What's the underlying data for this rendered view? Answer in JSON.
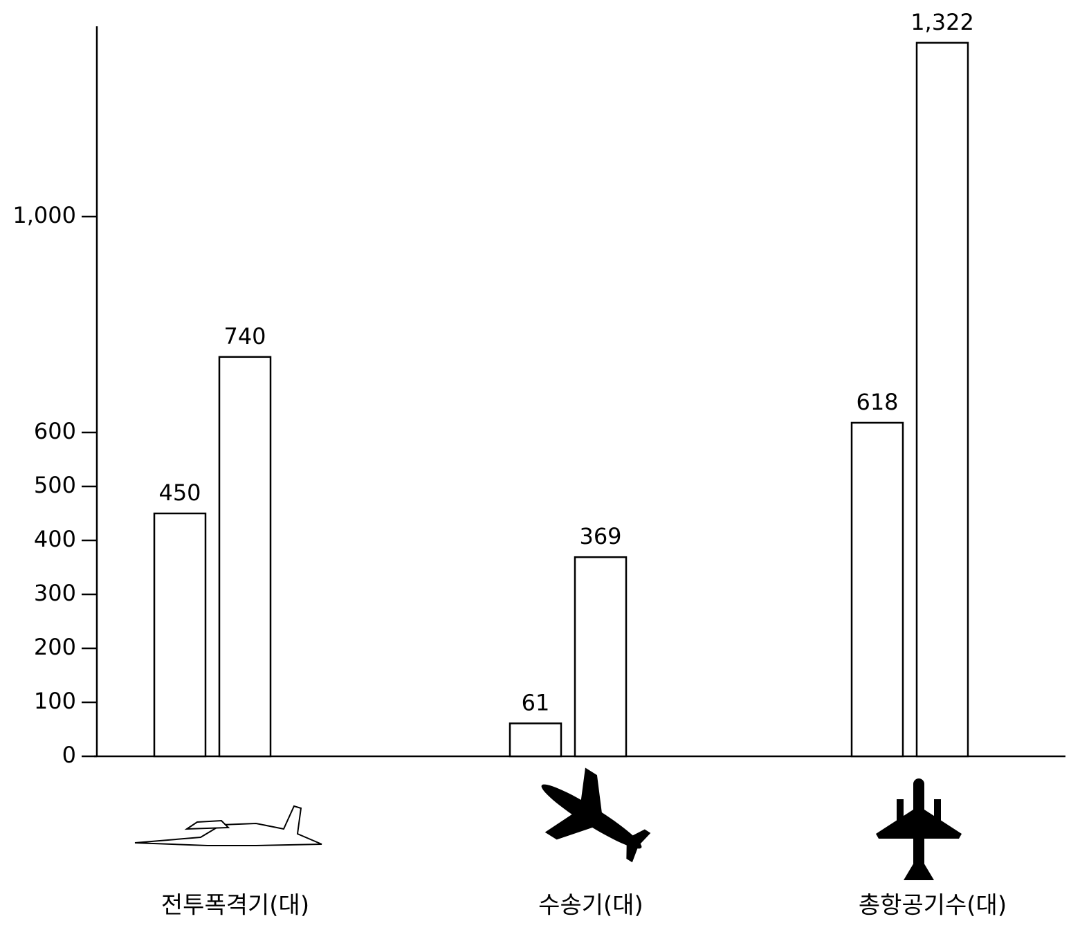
{
  "chart_data": {
    "type": "bar",
    "categories": [
      "전투폭격기(대)",
      "수송기(대)",
      "총항공기수(대)"
    ],
    "series": [
      {
        "color": "#ffffff",
        "values": [
          450,
          61,
          618
        ]
      },
      {
        "color": "#ffffff",
        "values": [
          740,
          369,
          1322
        ],
        "value_labels": [
          "740",
          "369",
          "1,322"
        ]
      }
    ],
    "ylim": [
      0,
      1350
    ],
    "yticks": [
      0,
      100,
      200,
      300,
      400,
      500,
      600,
      {
        "value": 1000,
        "label": "1,000"
      }
    ],
    "grid": false
  }
}
